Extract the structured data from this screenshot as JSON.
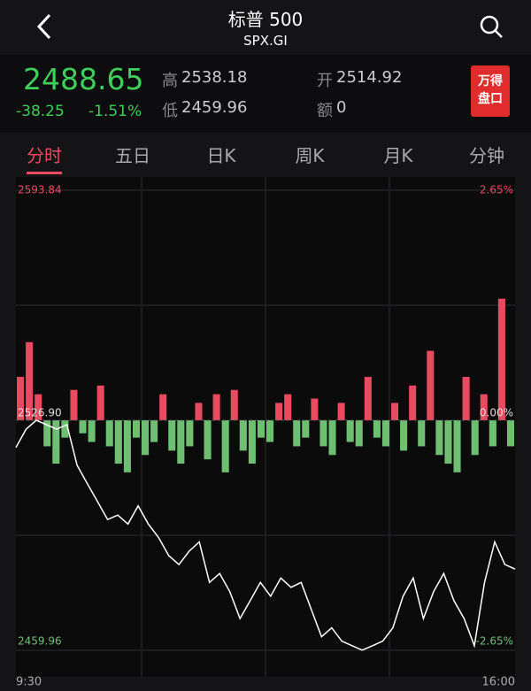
{
  "header": {
    "title": "标普 500",
    "subtitle": "SPX.GI"
  },
  "quote": {
    "price": "2488.65",
    "change": "-38.25",
    "change_pct": "-1.51%",
    "high_label": "高",
    "high": "2538.18",
    "low_label": "低",
    "low": "2459.96",
    "open_label": "开",
    "open": "2514.92",
    "amount_label": "额",
    "amount": "0",
    "badge": [
      "万得",
      "盘口"
    ]
  },
  "tabs": [
    "分时",
    "五日",
    "日K",
    "周K",
    "月K",
    "分钟"
  ],
  "chart_data": {
    "type": "line",
    "color": "#ffffff",
    "values": [
      2519.0,
      2524.3,
      2526.9,
      2525.6,
      2524.3,
      2525.6,
      2513.8,
      2508.5,
      2503.3,
      2498.0,
      2499.3,
      2496.7,
      2502.0,
      2496.7,
      2492.8,
      2487.5,
      2484.9,
      2488.8,
      2491.5,
      2479.7,
      2482.3,
      2477.0,
      2469.2,
      2474.4,
      2479.7,
      2475.7,
      2481.0,
      2478.3,
      2479.7,
      2471.8,
      2463.9,
      2466.5,
      2462.6,
      2461.3,
      2460.0,
      2461.3,
      2462.6,
      2466.5,
      2475.7,
      2481.0,
      2469.2,
      2477.0,
      2482.3,
      2474.4,
      2469.2,
      2461.3,
      2479.7,
      2491.5,
      2484.9,
      2483.6
    ],
    "bar_values": [
      0.5,
      0.9,
      0.3,
      -0.3,
      -0.5,
      -0.2,
      0.35,
      -0.15,
      -0.25,
      0.4,
      -0.3,
      -0.5,
      -0.6,
      -0.2,
      -0.4,
      -0.25,
      0.3,
      -0.35,
      -0.5,
      -0.3,
      0.2,
      -0.45,
      0.3,
      -0.6,
      0.35,
      -0.35,
      -0.5,
      -0.2,
      -0.25,
      0.2,
      0.3,
      -0.3,
      -0.2,
      0.25,
      -0.3,
      -0.4,
      0.2,
      -0.25,
      -0.3,
      0.5,
      -0.2,
      -0.3,
      0.2,
      -0.35,
      0.4,
      -0.3,
      0.8,
      -0.4,
      -0.5,
      -0.6,
      0.5,
      -0.4,
      0.3,
      -0.3,
      1.4,
      -0.3
    ],
    "up_color": "#e84a5f",
    "down_color": "#6fbf73",
    "ylim": [
      2459.96,
      2593.84
    ],
    "yticks": [
      2459.96,
      {
        "value": 2526.9,
        "label": "2526.90"
      },
      2593.84
    ],
    "y2lim": [
      -2.65,
      2.65
    ],
    "y2ticks": [
      {
        "value": -2.65,
        "label": "-2.65%"
      },
      {
        "value": 0,
        "label": "0.00%"
      },
      {
        "value": 2.65,
        "label": "2.65%"
      }
    ],
    "x_labels": [
      "9:30",
      "16:00"
    ]
  }
}
